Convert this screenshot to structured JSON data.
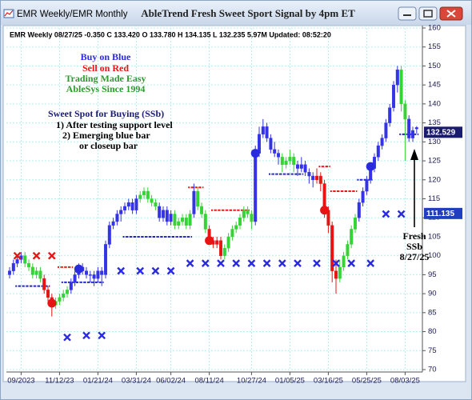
{
  "window": {
    "tab": "EMR  Weekly/EMR  Monthly"
  },
  "chart_data": {
    "type": "candlestick",
    "title": "AbleTrend Fresh Sweet Sport Signal by 4pm ET",
    "header": "EMR  Weekly 08/27/25 -0.350 C 133.420 O 133.780 H 134.135 L 132.235 5.97M Updated: 08:52:20",
    "categories": [
      null,
      null,
      null,
      "09/2023",
      null,
      null,
      null,
      null,
      null,
      null,
      null,
      null,
      null,
      "11/12/23",
      null,
      null,
      null,
      null,
      null,
      null,
      null,
      null,
      null,
      "01/21/24",
      null,
      null,
      null,
      null,
      null,
      null,
      null,
      null,
      null,
      "03/31/24",
      null,
      null,
      null,
      null,
      null,
      null,
      null,
      null,
      "06/02/24",
      null,
      null,
      null,
      null,
      null,
      null,
      null,
      null,
      null,
      "08/11/24",
      null,
      null,
      null,
      null,
      null,
      null,
      null,
      null,
      null,
      null,
      "10/27/24",
      null,
      null,
      null,
      null,
      null,
      null,
      null,
      null,
      null,
      "01/05/25",
      null,
      null,
      null,
      null,
      null,
      null,
      null,
      null,
      null,
      "03/16/25",
      null,
      null,
      null,
      null,
      null,
      null,
      null,
      null,
      null,
      "05/25/25",
      null,
      null,
      null,
      null,
      null,
      null,
      null,
      null,
      null,
      "08/03/25",
      null,
      null,
      null
    ],
    "open": [
      95,
      96,
      98,
      99,
      100,
      98,
      97,
      95,
      96,
      94,
      91,
      89,
      87,
      88,
      89,
      90,
      91,
      93,
      95,
      97,
      96,
      95,
      95,
      94,
      96,
      95,
      103,
      108,
      109,
      111,
      112,
      113,
      114,
      112,
      115,
      116,
      117,
      115,
      114,
      113,
      110,
      112,
      109,
      111,
      108,
      109,
      110,
      108,
      111,
      117,
      113,
      111,
      107,
      104,
      103,
      104,
      100,
      102,
      105,
      107,
      108,
      110,
      112,
      111,
      109,
      127,
      132,
      134,
      131,
      128,
      127,
      126,
      124,
      125,
      126,
      124,
      123,
      124,
      122,
      121,
      120,
      121,
      119,
      112,
      108,
      96,
      94,
      97,
      100,
      103,
      107,
      110,
      114,
      117,
      120,
      123,
      126,
      129,
      131,
      135,
      139,
      145,
      149,
      140,
      136,
      131,
      133.78
    ],
    "high": [
      97,
      99,
      100,
      101,
      101,
      99,
      98,
      97,
      97,
      95,
      92,
      90,
      89,
      90,
      91,
      92,
      94,
      96,
      98,
      98,
      97,
      96,
      96,
      97,
      97,
      104,
      109,
      110,
      112,
      113,
      114,
      115,
      115,
      116,
      117,
      118,
      118,
      116,
      115,
      114,
      113,
      113,
      112,
      112,
      110,
      111,
      111,
      112,
      119,
      118,
      114,
      112,
      108,
      105,
      105,
      105,
      103,
      106,
      108,
      109,
      111,
      113,
      113,
      112,
      129,
      134,
      136,
      135,
      132,
      130,
      128,
      127,
      126,
      128,
      127,
      125,
      126,
      125,
      123,
      122,
      123,
      122,
      120,
      113,
      109,
      99,
      99,
      101,
      104,
      108,
      111,
      115,
      118,
      121,
      124,
      127,
      130,
      132,
      136,
      140,
      146,
      150,
      150,
      141,
      137,
      134,
      134.135
    ],
    "low": [
      94,
      95,
      97,
      98,
      97,
      96,
      94,
      94,
      93,
      90,
      88,
      84,
      86,
      87,
      88,
      89,
      90,
      92,
      94,
      95,
      94,
      93,
      92,
      93,
      92,
      94,
      102,
      107,
      108,
      109,
      111,
      112,
      111,
      111,
      114,
      115,
      114,
      113,
      112,
      109,
      109,
      108,
      108,
      107,
      107,
      108,
      107,
      107,
      110,
      112,
      110,
      106,
      103,
      102,
      102,
      99,
      99,
      101,
      104,
      106,
      107,
      109,
      110,
      107,
      108,
      126,
      131,
      130,
      127,
      126,
      124,
      122,
      123,
      124,
      122,
      121,
      122,
      121,
      119,
      118,
      119,
      117,
      110,
      106,
      93,
      90,
      93,
      96,
      99,
      102,
      106,
      109,
      113,
      116,
      119,
      122,
      125,
      128,
      130,
      134,
      138,
      143,
      138,
      125,
      130,
      130,
      132.235
    ],
    "close": [
      96,
      98,
      99,
      100,
      98,
      97,
      95,
      96,
      94,
      91,
      89,
      87,
      88,
      89,
      90,
      91,
      93,
      95,
      97,
      96,
      95,
      95,
      94,
      96,
      95,
      103,
      108,
      109,
      111,
      112,
      113,
      114,
      112,
      115,
      116,
      117,
      115,
      114,
      113,
      110,
      112,
      109,
      111,
      108,
      109,
      110,
      108,
      111,
      117,
      113,
      111,
      107,
      104,
      103,
      104,
      100,
      102,
      105,
      107,
      108,
      110,
      112,
      111,
      109,
      127,
      132,
      134,
      131,
      128,
      127,
      126,
      124,
      125,
      126,
      124,
      123,
      124,
      122,
      121,
      120,
      121,
      119,
      112,
      108,
      96,
      94,
      97,
      100,
      103,
      107,
      110,
      114,
      117,
      120,
      123,
      126,
      129,
      131,
      135,
      139,
      145,
      149,
      140,
      136,
      131,
      133,
      133.42
    ],
    "bar_colors": [
      "blue",
      "blue",
      "blue",
      "blue",
      "green",
      "green",
      "green",
      "green",
      "green",
      "red",
      "red",
      "red",
      "green",
      "green",
      "green",
      "green",
      "blue",
      "blue",
      "blue",
      "blue",
      "blue",
      "blue",
      "blue",
      "blue",
      "blue",
      "blue",
      "blue",
      "blue",
      "blue",
      "blue",
      "blue",
      "blue",
      "blue",
      "blue",
      "green",
      "green",
      "green",
      "green",
      "green",
      "blue",
      "blue",
      "blue",
      "blue",
      "green",
      "green",
      "green",
      "green",
      "green",
      "blue",
      "green",
      "green",
      "green",
      "red",
      "red",
      "red",
      "red",
      "green",
      "green",
      "green",
      "green",
      "green",
      "green",
      "green",
      "green",
      "blue",
      "blue",
      "blue",
      "blue",
      "blue",
      "blue",
      "blue",
      "green",
      "green",
      "green",
      "green",
      "blue",
      "blue",
      "blue",
      "blue",
      "blue",
      "red",
      "red",
      "red",
      "red",
      "red",
      "red",
      "green",
      "green",
      "green",
      "green",
      "green",
      "blue",
      "blue",
      "blue",
      "blue",
      "blue",
      "blue",
      "blue",
      "blue",
      "blue",
      "blue",
      "blue",
      "green",
      "green",
      "blue",
      "blue",
      "blue"
    ],
    "palette": {
      "blue": "#3434e6",
      "green": "#35d435",
      "red": "#e81414"
    },
    "support": [
      null,
      null,
      92,
      92,
      92,
      92,
      92,
      92,
      92,
      92,
      92,
      null,
      null,
      null,
      93,
      93,
      93,
      93,
      93,
      93,
      93,
      93,
      93,
      93,
      93,
      null,
      null,
      null,
      null,
      null,
      105,
      105,
      105,
      105,
      105,
      105,
      105,
      105,
      105,
      105,
      105,
      105,
      105,
      105,
      105,
      105,
      105,
      105,
      null,
      null,
      null,
      null,
      null,
      null,
      null,
      null,
      null,
      null,
      null,
      null,
      null,
      null,
      null,
      null,
      null,
      null,
      null,
      null,
      121.5,
      121.5,
      121.5,
      121.5,
      121.5,
      121.5,
      121.5,
      121.5,
      121.5,
      null,
      null,
      null,
      null,
      null,
      null,
      null,
      null,
      null,
      null,
      null,
      null,
      null,
      null,
      120,
      120,
      120,
      120,
      null,
      null,
      null,
      null,
      null,
      null,
      null,
      132,
      132,
      132,
      132,
      132
    ],
    "resistance": [
      null,
      null,
      null,
      null,
      null,
      null,
      null,
      null,
      null,
      null,
      null,
      null,
      null,
      97,
      97,
      97,
      97,
      null,
      null,
      null,
      null,
      null,
      null,
      null,
      null,
      null,
      null,
      null,
      null,
      null,
      null,
      null,
      null,
      null,
      null,
      null,
      null,
      null,
      null,
      null,
      null,
      null,
      null,
      null,
      null,
      null,
      null,
      118,
      118,
      118,
      118,
      null,
      null,
      112,
      112,
      112,
      112,
      112,
      112,
      112,
      112,
      112,
      112,
      null,
      null,
      null,
      null,
      null,
      null,
      null,
      null,
      null,
      null,
      null,
      null,
      null,
      null,
      null,
      null,
      null,
      null,
      123.5,
      123.5,
      123.5,
      117,
      117,
      117,
      117,
      117,
      117,
      117,
      null,
      null,
      null,
      null,
      null,
      null,
      null,
      null,
      null,
      null,
      null,
      null,
      null,
      null,
      null,
      null
    ],
    "buy_x": [
      null,
      null,
      null,
      null,
      null,
      null,
      null,
      null,
      null,
      null,
      null,
      null,
      null,
      null,
      null,
      78.5,
      null,
      null,
      null,
      null,
      79,
      null,
      null,
      null,
      79,
      null,
      null,
      null,
      null,
      96,
      null,
      null,
      null,
      null,
      96,
      null,
      null,
      null,
      96,
      null,
      null,
      null,
      96,
      null,
      null,
      null,
      null,
      98,
      null,
      null,
      null,
      98,
      null,
      null,
      null,
      98,
      null,
      null,
      null,
      98,
      null,
      null,
      null,
      98,
      null,
      null,
      null,
      98,
      null,
      null,
      null,
      98,
      null,
      null,
      null,
      98,
      null,
      null,
      null,
      null,
      98,
      null,
      null,
      null,
      null,
      98,
      null,
      null,
      null,
      98,
      null,
      null,
      null,
      null,
      98,
      null,
      null,
      null,
      111,
      null,
      null,
      null,
      111,
      null,
      null,
      null,
      null
    ],
    "sell_x": [
      null,
      null,
      100,
      null,
      null,
      null,
      null,
      100,
      null,
      null,
      null,
      100,
      null,
      null,
      null,
      null,
      null,
      null,
      null,
      null,
      null,
      null,
      null,
      null,
      null,
      null,
      null,
      null,
      null,
      null,
      null,
      null,
      null,
      null,
      null,
      null,
      null,
      null,
      null,
      null,
      null,
      null,
      null,
      null,
      null,
      null,
      null,
      null,
      null,
      null,
      null,
      null,
      null,
      null,
      null,
      null,
      null,
      null,
      null,
      null,
      null,
      null,
      null,
      null,
      null,
      null,
      null,
      null,
      null,
      null,
      null,
      null,
      null,
      null,
      null,
      null,
      null,
      null,
      null,
      null,
      null,
      null,
      null,
      null,
      null,
      null,
      null,
      null,
      null,
      null,
      null,
      null,
      null,
      null,
      null,
      null,
      null,
      null,
      null,
      null,
      null,
      null,
      null,
      null,
      null,
      null,
      null
    ],
    "buy_circle": [
      null,
      null,
      null,
      null,
      null,
      null,
      null,
      null,
      null,
      null,
      null,
      null,
      null,
      null,
      null,
      null,
      null,
      null,
      96.5,
      null,
      null,
      null,
      null,
      null,
      null,
      null,
      null,
      null,
      null,
      null,
      null,
      null,
      null,
      null,
      null,
      null,
      null,
      null,
      null,
      null,
      null,
      null,
      null,
      null,
      null,
      null,
      null,
      null,
      null,
      null,
      null,
      null,
      null,
      null,
      null,
      null,
      null,
      null,
      null,
      null,
      null,
      null,
      null,
      null,
      127,
      null,
      null,
      null,
      null,
      null,
      null,
      null,
      null,
      null,
      null,
      null,
      null,
      null,
      null,
      null,
      null,
      null,
      null,
      null,
      null,
      null,
      null,
      null,
      null,
      null,
      null,
      null,
      null,
      null,
      123.5,
      null,
      null,
      null,
      null,
      null,
      null,
      null,
      null,
      null,
      null,
      null,
      null
    ],
    "sell_circle": [
      null,
      null,
      null,
      null,
      null,
      null,
      null,
      null,
      null,
      null,
      null,
      87.5,
      null,
      null,
      null,
      null,
      null,
      null,
      null,
      null,
      null,
      null,
      null,
      null,
      null,
      null,
      null,
      null,
      null,
      null,
      null,
      null,
      null,
      null,
      null,
      null,
      null,
      null,
      null,
      null,
      null,
      null,
      null,
      null,
      null,
      null,
      null,
      null,
      null,
      null,
      null,
      null,
      104,
      null,
      null,
      null,
      null,
      null,
      null,
      null,
      null,
      null,
      null,
      null,
      null,
      null,
      null,
      null,
      null,
      null,
      null,
      null,
      null,
      null,
      null,
      null,
      null,
      null,
      null,
      null,
      null,
      null,
      112,
      null,
      null,
      null,
      null,
      null,
      null,
      null,
      null,
      null,
      null,
      null,
      null,
      null,
      null,
      null,
      null,
      null,
      null,
      null,
      null,
      null,
      null,
      null,
      null
    ],
    "marker_colors": {
      "buy": "#2a2ae0",
      "sell": "#e81414",
      "support": "#2020c8",
      "resistance": "#e81414"
    },
    "price_tags": [
      {
        "value": 132.529,
        "color": "#1b1b6e"
      },
      {
        "value": 111.135,
        "color": "#1f3fbf"
      }
    ],
    "ylim": [
      70,
      160
    ],
    "yticks": [
      70,
      75,
      80,
      85,
      90,
      95,
      100,
      105,
      110,
      115,
      120,
      125,
      130,
      135,
      140,
      145,
      150,
      155,
      160
    ],
    "grid": true,
    "annotations": [
      {
        "text": "Buy on Blue",
        "color": "#2a2ae0"
      },
      {
        "text": "Sell on Red",
        "color": "#e81414"
      },
      {
        "text": "Trading Made Easy",
        "color": "#2e9a2e"
      },
      {
        "text": "AbleSys Since 1994",
        "color": "#2e9a2e"
      },
      {
        "text": "Sweet Spot for Buying (SSb)",
        "color": "#1b1b7a"
      },
      {
        "text": "1) After testing support level",
        "color": "#000000"
      },
      {
        "text": "2) Emerging blue bar",
        "color": "#000000"
      },
      {
        "text": "or closeup bar",
        "color": "#000000"
      },
      {
        "text": "Fresh",
        "color": "#000000"
      },
      {
        "text": "SSb",
        "color": "#000000"
      },
      {
        "text": "8/27/25",
        "color": "#000000"
      }
    ]
  }
}
